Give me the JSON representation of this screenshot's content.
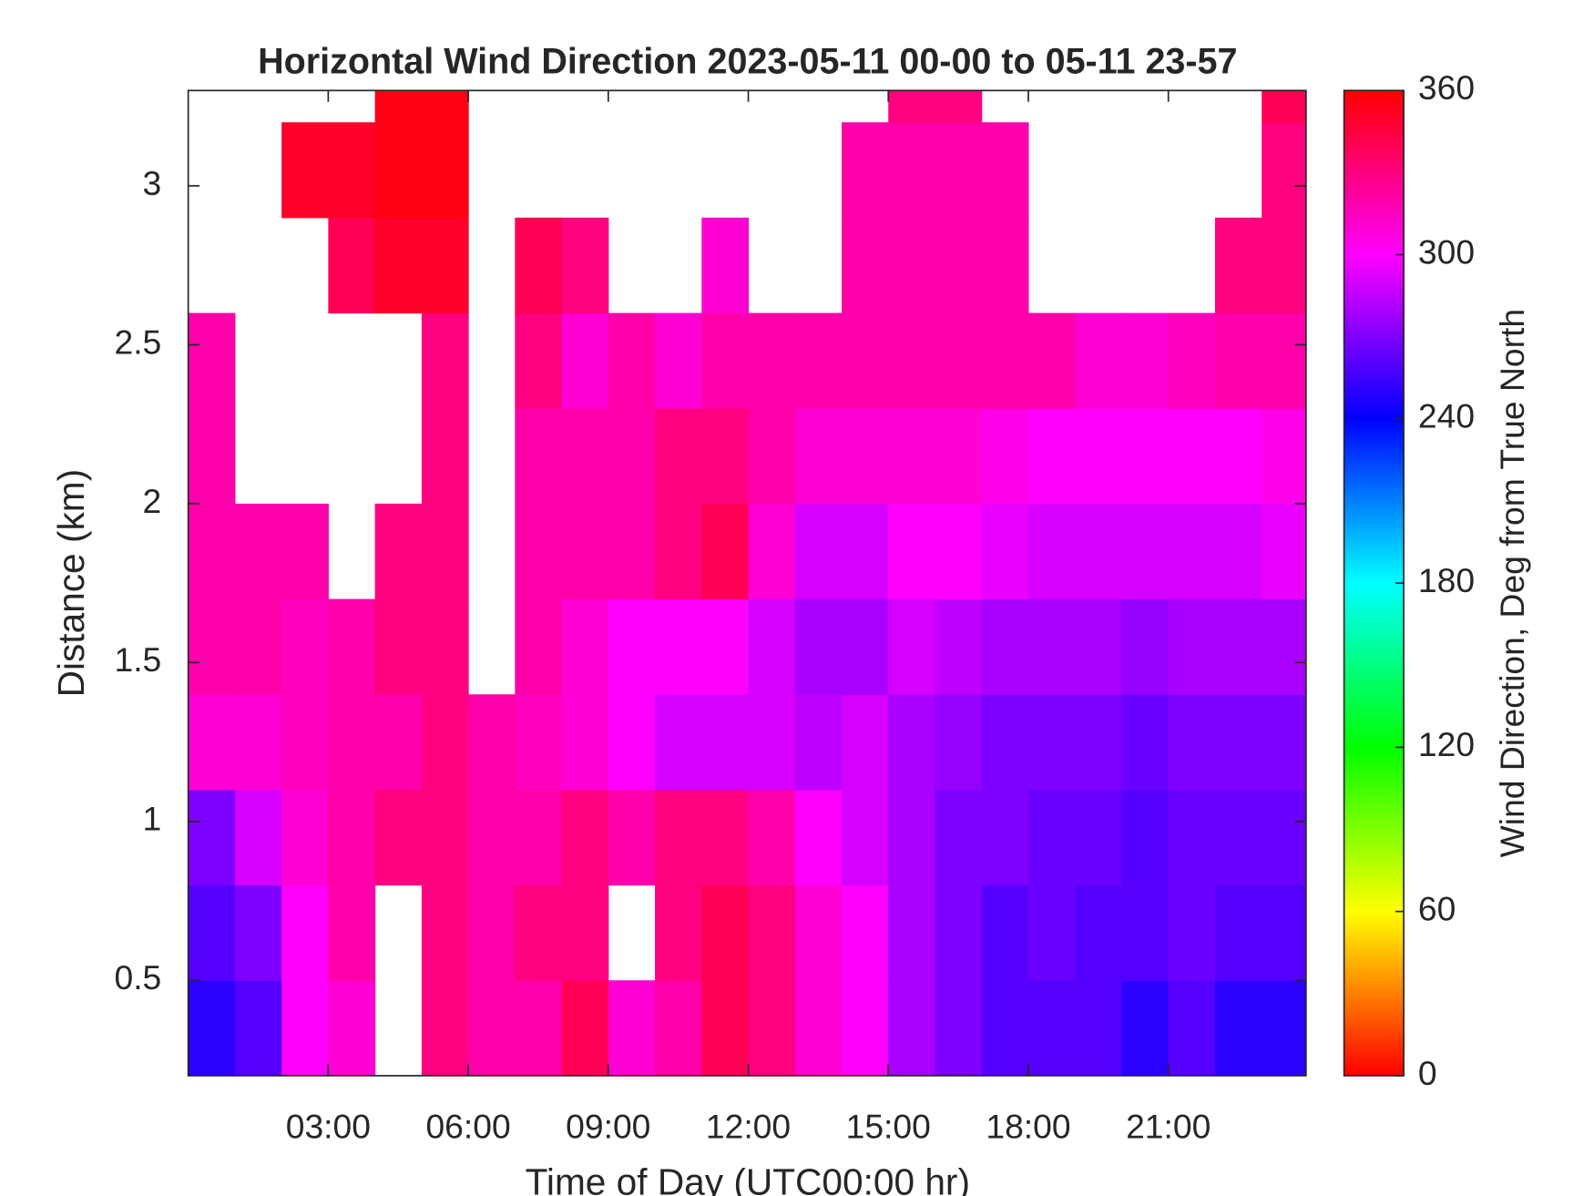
{
  "chart_data": {
    "type": "heatmap",
    "title": "Horizontal Wind Direction 2023-05-11 00-00 to 05-11 23-57",
    "xlabel": "Time of Day (UTC00:00 hr)",
    "ylabel": "Distance (km)",
    "colorbar_label": "Wind Direction, Deg from True North",
    "colormap": "hsv",
    "x": [
      0.5,
      1.5,
      2.5,
      3.5,
      4.5,
      5.5,
      6.5,
      7.5,
      8.5,
      9.5,
      10.5,
      11.5,
      12.5,
      13.5,
      14.5,
      15.5,
      16.5,
      17.5,
      18.5,
      19.5,
      20.5,
      21.5,
      22.5,
      23.5
    ],
    "y": [
      0.35,
      0.65,
      0.95,
      1.25,
      1.55,
      1.85,
      2.15,
      2.45,
      2.75,
      3.05,
      3.35
    ],
    "z": [
      [
        250,
        260,
        300,
        310,
        null,
        330,
        320,
        320,
        340,
        310,
        320,
        340,
        330,
        310,
        300,
        280,
        270,
        260,
        260,
        260,
        250,
        260,
        250,
        250
      ],
      [
        260,
        270,
        300,
        320,
        null,
        330,
        320,
        330,
        330,
        null,
        330,
        340,
        330,
        310,
        300,
        280,
        270,
        260,
        265,
        260,
        260,
        265,
        260,
        260
      ],
      [
        270,
        290,
        310,
        320,
        330,
        330,
        320,
        320,
        330,
        320,
        330,
        330,
        320,
        300,
        290,
        280,
        270,
        270,
        265,
        265,
        260,
        265,
        265,
        265
      ],
      [
        310,
        310,
        315,
        320,
        320,
        330,
        320,
        315,
        310,
        300,
        290,
        290,
        290,
        285,
        290,
        280,
        275,
        270,
        270,
        270,
        265,
        270,
        270,
        270
      ],
      [
        320,
        320,
        315,
        320,
        330,
        330,
        null,
        320,
        310,
        300,
        300,
        300,
        290,
        280,
        280,
        290,
        285,
        280,
        280,
        280,
        275,
        280,
        280,
        280
      ],
      [
        320,
        320,
        320,
        null,
        330,
        330,
        null,
        320,
        320,
        320,
        330,
        340,
        310,
        290,
        290,
        300,
        300,
        295,
        290,
        290,
        290,
        290,
        290,
        295
      ],
      [
        320,
        null,
        null,
        null,
        null,
        330,
        null,
        320,
        320,
        320,
        330,
        330,
        320,
        310,
        310,
        310,
        310,
        305,
        300,
        300,
        300,
        300,
        300,
        305
      ],
      [
        320,
        null,
        null,
        null,
        null,
        330,
        null,
        330,
        310,
        320,
        310,
        320,
        320,
        320,
        320,
        320,
        320,
        320,
        320,
        310,
        310,
        315,
        320,
        320
      ],
      [
        null,
        null,
        null,
        340,
        350,
        350,
        null,
        340,
        330,
        null,
        null,
        310,
        null,
        null,
        320,
        320,
        320,
        320,
        null,
        null,
        null,
        null,
        330,
        330
      ],
      [
        null,
        null,
        350,
        350,
        355,
        355,
        null,
        null,
        null,
        null,
        null,
        null,
        null,
        null,
        320,
        320,
        320,
        320,
        null,
        null,
        null,
        null,
        null,
        330
      ],
      [
        null,
        null,
        null,
        null,
        355,
        355,
        null,
        null,
        null,
        null,
        null,
        null,
        null,
        null,
        null,
        330,
        330,
        null,
        null,
        null,
        null,
        null,
        null,
        340
      ]
    ],
    "xlim": [
      0,
      23.95
    ],
    "ylim": [
      0.2,
      3.3
    ],
    "clim": [
      0,
      360
    ],
    "xticks": [
      {
        "value": 3,
        "label": "03:00"
      },
      {
        "value": 6,
        "label": "06:00"
      },
      {
        "value": 9,
        "label": "09:00"
      },
      {
        "value": 12,
        "label": "12:00"
      },
      {
        "value": 15,
        "label": "15:00"
      },
      {
        "value": 18,
        "label": "18:00"
      },
      {
        "value": 21,
        "label": "21:00"
      }
    ],
    "yticks": [
      0.5,
      1,
      1.5,
      2,
      2.5,
      3
    ],
    "cticks": [
      0,
      60,
      120,
      180,
      240,
      300,
      360
    ]
  }
}
